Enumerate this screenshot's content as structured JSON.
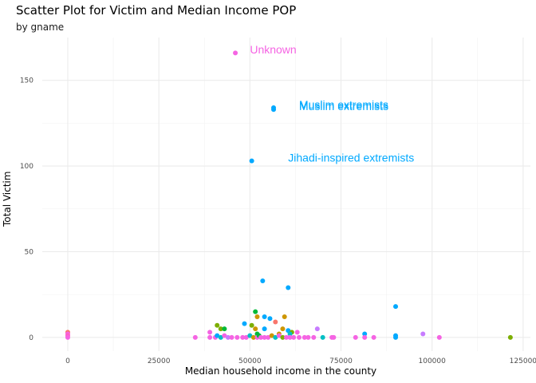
{
  "chart_data": {
    "type": "scatter",
    "title": "Scatter Plot for Victim and Median Income POP",
    "subtitle": "by gname",
    "xlabel": "Median household income in the county",
    "ylabel": "Total Victim",
    "xlim": [
      -7000,
      127000
    ],
    "ylim": [
      -8,
      175
    ],
    "xticks": [
      0,
      25000,
      50000,
      75000,
      100000,
      125000
    ],
    "yticks": [
      0,
      50,
      100,
      150
    ],
    "grid": true,
    "legend": "none",
    "colors": {
      "pink": "#F564E3",
      "blue": "#00A9FF",
      "violet": "#C77CFF",
      "green": "#00BA38",
      "teal": "#00BFC4",
      "olive": "#7CAE00",
      "orange": "#CD9600",
      "rose": "#FF61C3",
      "red": "#F8766D"
    },
    "annotations": [
      {
        "text": "Unknown",
        "x": 50000,
        "y": 168,
        "color": "#F564E3"
      },
      {
        "text": "Muslim extremists",
        "x": 63500,
        "y": 136,
        "color": "#00A9FF"
      },
      {
        "text": "Muslim extremists",
        "x": 63500,
        "y": 135,
        "color": "#00A9FF"
      },
      {
        "text": "Jihadi-inspired extremists",
        "x": 60500,
        "y": 105,
        "color": "#00A9FF"
      }
    ],
    "points": [
      {
        "x": 46000,
        "y": 166,
        "c": "pink"
      },
      {
        "x": 56500,
        "y": 134,
        "c": "blue"
      },
      {
        "x": 56500,
        "y": 133,
        "c": "blue"
      },
      {
        "x": 50500,
        "y": 103,
        "c": "blue"
      },
      {
        "x": 53500,
        "y": 33,
        "c": "blue"
      },
      {
        "x": 60500,
        "y": 29,
        "c": "blue"
      },
      {
        "x": 90000,
        "y": 18,
        "c": "blue"
      },
      {
        "x": 51500,
        "y": 15,
        "c": "green"
      },
      {
        "x": 52000,
        "y": 12,
        "c": "orange"
      },
      {
        "x": 54000,
        "y": 12,
        "c": "blue"
      },
      {
        "x": 59500,
        "y": 12,
        "c": "orange"
      },
      {
        "x": 55500,
        "y": 11,
        "c": "blue"
      },
      {
        "x": 57000,
        "y": 9,
        "c": "red"
      },
      {
        "x": 48500,
        "y": 8,
        "c": "blue"
      },
      {
        "x": 41000,
        "y": 7,
        "c": "olive"
      },
      {
        "x": 50500,
        "y": 7,
        "c": "olive"
      },
      {
        "x": 42000,
        "y": 5,
        "c": "olive"
      },
      {
        "x": 43000,
        "y": 5,
        "c": "green"
      },
      {
        "x": 51500,
        "y": 5,
        "c": "orange"
      },
      {
        "x": 54000,
        "y": 5,
        "c": "blue"
      },
      {
        "x": 59000,
        "y": 5,
        "c": "orange"
      },
      {
        "x": 68500,
        "y": 5,
        "c": "violet"
      },
      {
        "x": 60500,
        "y": 4,
        "c": "blue"
      },
      {
        "x": 61500,
        "y": 3,
        "c": "olive"
      },
      {
        "x": 39000,
        "y": 3,
        "c": "pink"
      },
      {
        "x": 52000,
        "y": 2,
        "c": "green"
      },
      {
        "x": 58000,
        "y": 2,
        "c": "orange"
      },
      {
        "x": 61000,
        "y": 2,
        "c": "teal"
      },
      {
        "x": 63000,
        "y": 3,
        "c": "pink"
      },
      {
        "x": 81500,
        "y": 2,
        "c": "blue"
      },
      {
        "x": 97500,
        "y": 2,
        "c": "violet"
      },
      {
        "x": 0,
        "y": 3,
        "c": "red"
      },
      {
        "x": 0,
        "y": 2,
        "c": "pink"
      },
      {
        "x": 0,
        "y": 1,
        "c": "rose"
      },
      {
        "x": 0,
        "y": 0,
        "c": "pink"
      },
      {
        "x": 35000,
        "y": 0,
        "c": "pink"
      },
      {
        "x": 39000,
        "y": 0,
        "c": "pink"
      },
      {
        "x": 40500,
        "y": 0,
        "c": "pink"
      },
      {
        "x": 41000,
        "y": 1,
        "c": "blue"
      },
      {
        "x": 42000,
        "y": 0,
        "c": "teal"
      },
      {
        "x": 43000,
        "y": 1,
        "c": "pink"
      },
      {
        "x": 44000,
        "y": 0,
        "c": "violet"
      },
      {
        "x": 45000,
        "y": 0,
        "c": "pink"
      },
      {
        "x": 46500,
        "y": 0,
        "c": "pink"
      },
      {
        "x": 48000,
        "y": 0,
        "c": "pink"
      },
      {
        "x": 49000,
        "y": 0,
        "c": "pink"
      },
      {
        "x": 50000,
        "y": 1,
        "c": "teal"
      },
      {
        "x": 51000,
        "y": 0,
        "c": "orange"
      },
      {
        "x": 52000,
        "y": 0,
        "c": "pink"
      },
      {
        "x": 52500,
        "y": 1,
        "c": "green"
      },
      {
        "x": 53000,
        "y": 0,
        "c": "pink"
      },
      {
        "x": 54000,
        "y": 0,
        "c": "pink"
      },
      {
        "x": 55000,
        "y": 0,
        "c": "pink"
      },
      {
        "x": 56000,
        "y": 1,
        "c": "orange"
      },
      {
        "x": 57000,
        "y": 0,
        "c": "teal"
      },
      {
        "x": 58000,
        "y": 1,
        "c": "pink"
      },
      {
        "x": 59000,
        "y": 0,
        "c": "olive"
      },
      {
        "x": 60000,
        "y": 0,
        "c": "pink"
      },
      {
        "x": 61000,
        "y": 0,
        "c": "pink"
      },
      {
        "x": 62000,
        "y": 0,
        "c": "pink"
      },
      {
        "x": 63500,
        "y": 0,
        "c": "pink"
      },
      {
        "x": 65000,
        "y": 0,
        "c": "pink"
      },
      {
        "x": 66000,
        "y": 0,
        "c": "pink"
      },
      {
        "x": 67500,
        "y": 0,
        "c": "pink"
      },
      {
        "x": 70000,
        "y": 0,
        "c": "teal"
      },
      {
        "x": 72500,
        "y": 0,
        "c": "pink"
      },
      {
        "x": 73000,
        "y": 0,
        "c": "pink"
      },
      {
        "x": 79000,
        "y": 0,
        "c": "pink"
      },
      {
        "x": 81500,
        "y": 0,
        "c": "pink"
      },
      {
        "x": 84000,
        "y": 0,
        "c": "pink"
      },
      {
        "x": 90000,
        "y": 0,
        "c": "blue"
      },
      {
        "x": 90000,
        "y": 1,
        "c": "blue"
      },
      {
        "x": 102000,
        "y": 0,
        "c": "pink"
      },
      {
        "x": 121500,
        "y": 0,
        "c": "olive"
      }
    ]
  }
}
